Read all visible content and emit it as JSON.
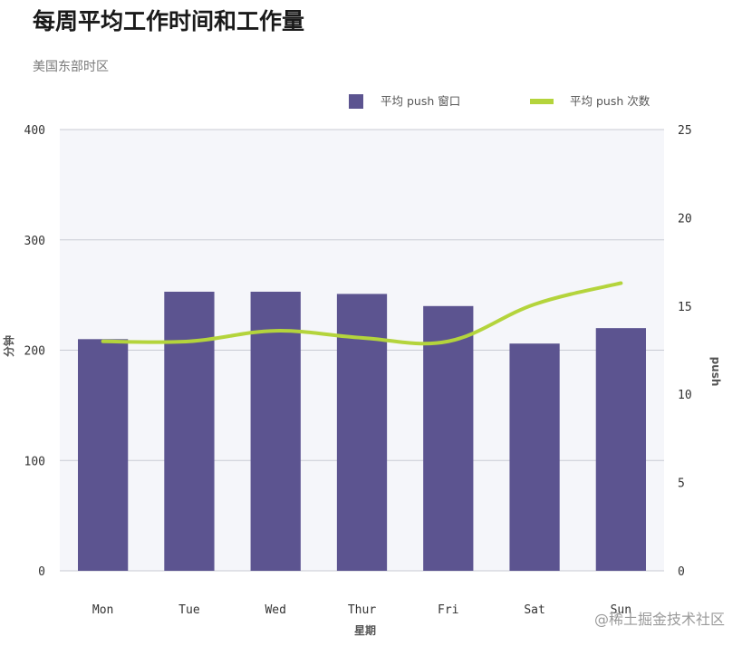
{
  "chart_data": {
    "type": "bar",
    "title": "每周平均工作时间和工作量",
    "subtitle": "美国东部时区",
    "categories": [
      "Mon",
      "Tue",
      "Wed",
      "Thur",
      "Fri",
      "Sat",
      "Sun"
    ],
    "xlabel": "星期",
    "ylabel": "分钟",
    "y2label": "push",
    "ylim": [
      0,
      400
    ],
    "y2lim": [
      0,
      25
    ],
    "yticks": [
      0,
      100,
      200,
      300,
      400
    ],
    "y2ticks": [
      0,
      5,
      10,
      15,
      20,
      25
    ],
    "grid": true,
    "legend_position": "top",
    "series": [
      {
        "name": "平均 push 窗口",
        "type": "bar",
        "axis": "left",
        "color": "#5c5490",
        "values": [
          210,
          253,
          253,
          251,
          240,
          206,
          220
        ]
      },
      {
        "name": "平均 push 次数",
        "type": "line",
        "axis": "right",
        "color": "#b4d43c",
        "values": [
          13.0,
          13.0,
          13.6,
          13.2,
          13.0,
          15.1,
          16.3
        ]
      }
    ]
  },
  "watermark": "@稀土掘金技术社区"
}
